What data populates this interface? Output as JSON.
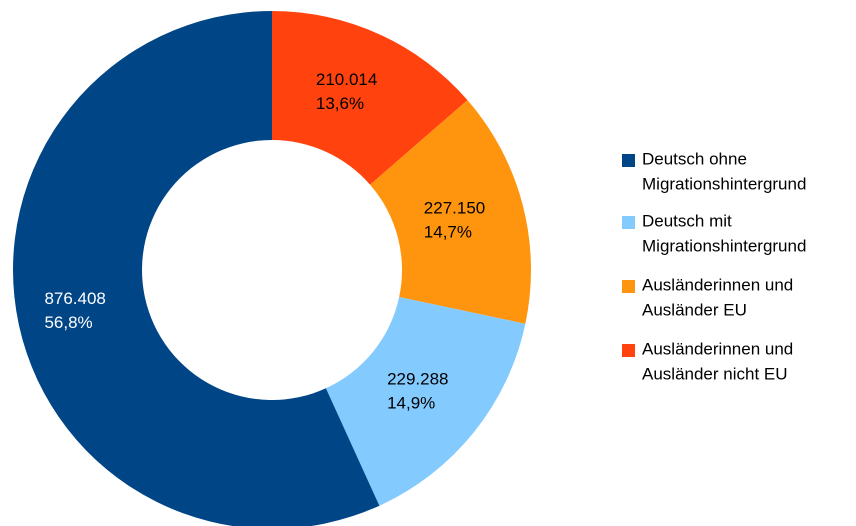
{
  "chart_data": {
    "type": "donut",
    "series": [
      {
        "name": [
          "Deutsch ohne",
          "Migrationshintergrund"
        ],
        "color": "#004586",
        "label_color": "#ffffff"
      },
      {
        "name": [
          "Deutsch mit",
          "Migrationshintergrund"
        ],
        "color": "#83caff",
        "label_color": "#000000"
      },
      {
        "name": [
          "Ausländerinnen und",
          "Ausländer EU"
        ],
        "color": "#ff950e",
        "label_color": "#000000"
      },
      {
        "name": [
          "Ausländerinnen und",
          "Ausländer nicht EU"
        ],
        "color": "#ff420e",
        "label_color": "#000000"
      }
    ],
    "values": [
      876408,
      229288,
      227150,
      210014
    ],
    "value_labels": [
      "876.408",
      "229.288",
      "227.150",
      "210.014"
    ],
    "shares": [
      56.8,
      14.9,
      14.7,
      13.6
    ],
    "share_labels": [
      "56,8%",
      "14,9%",
      "14,7%",
      "13,6%"
    ],
    "legend": "right"
  }
}
